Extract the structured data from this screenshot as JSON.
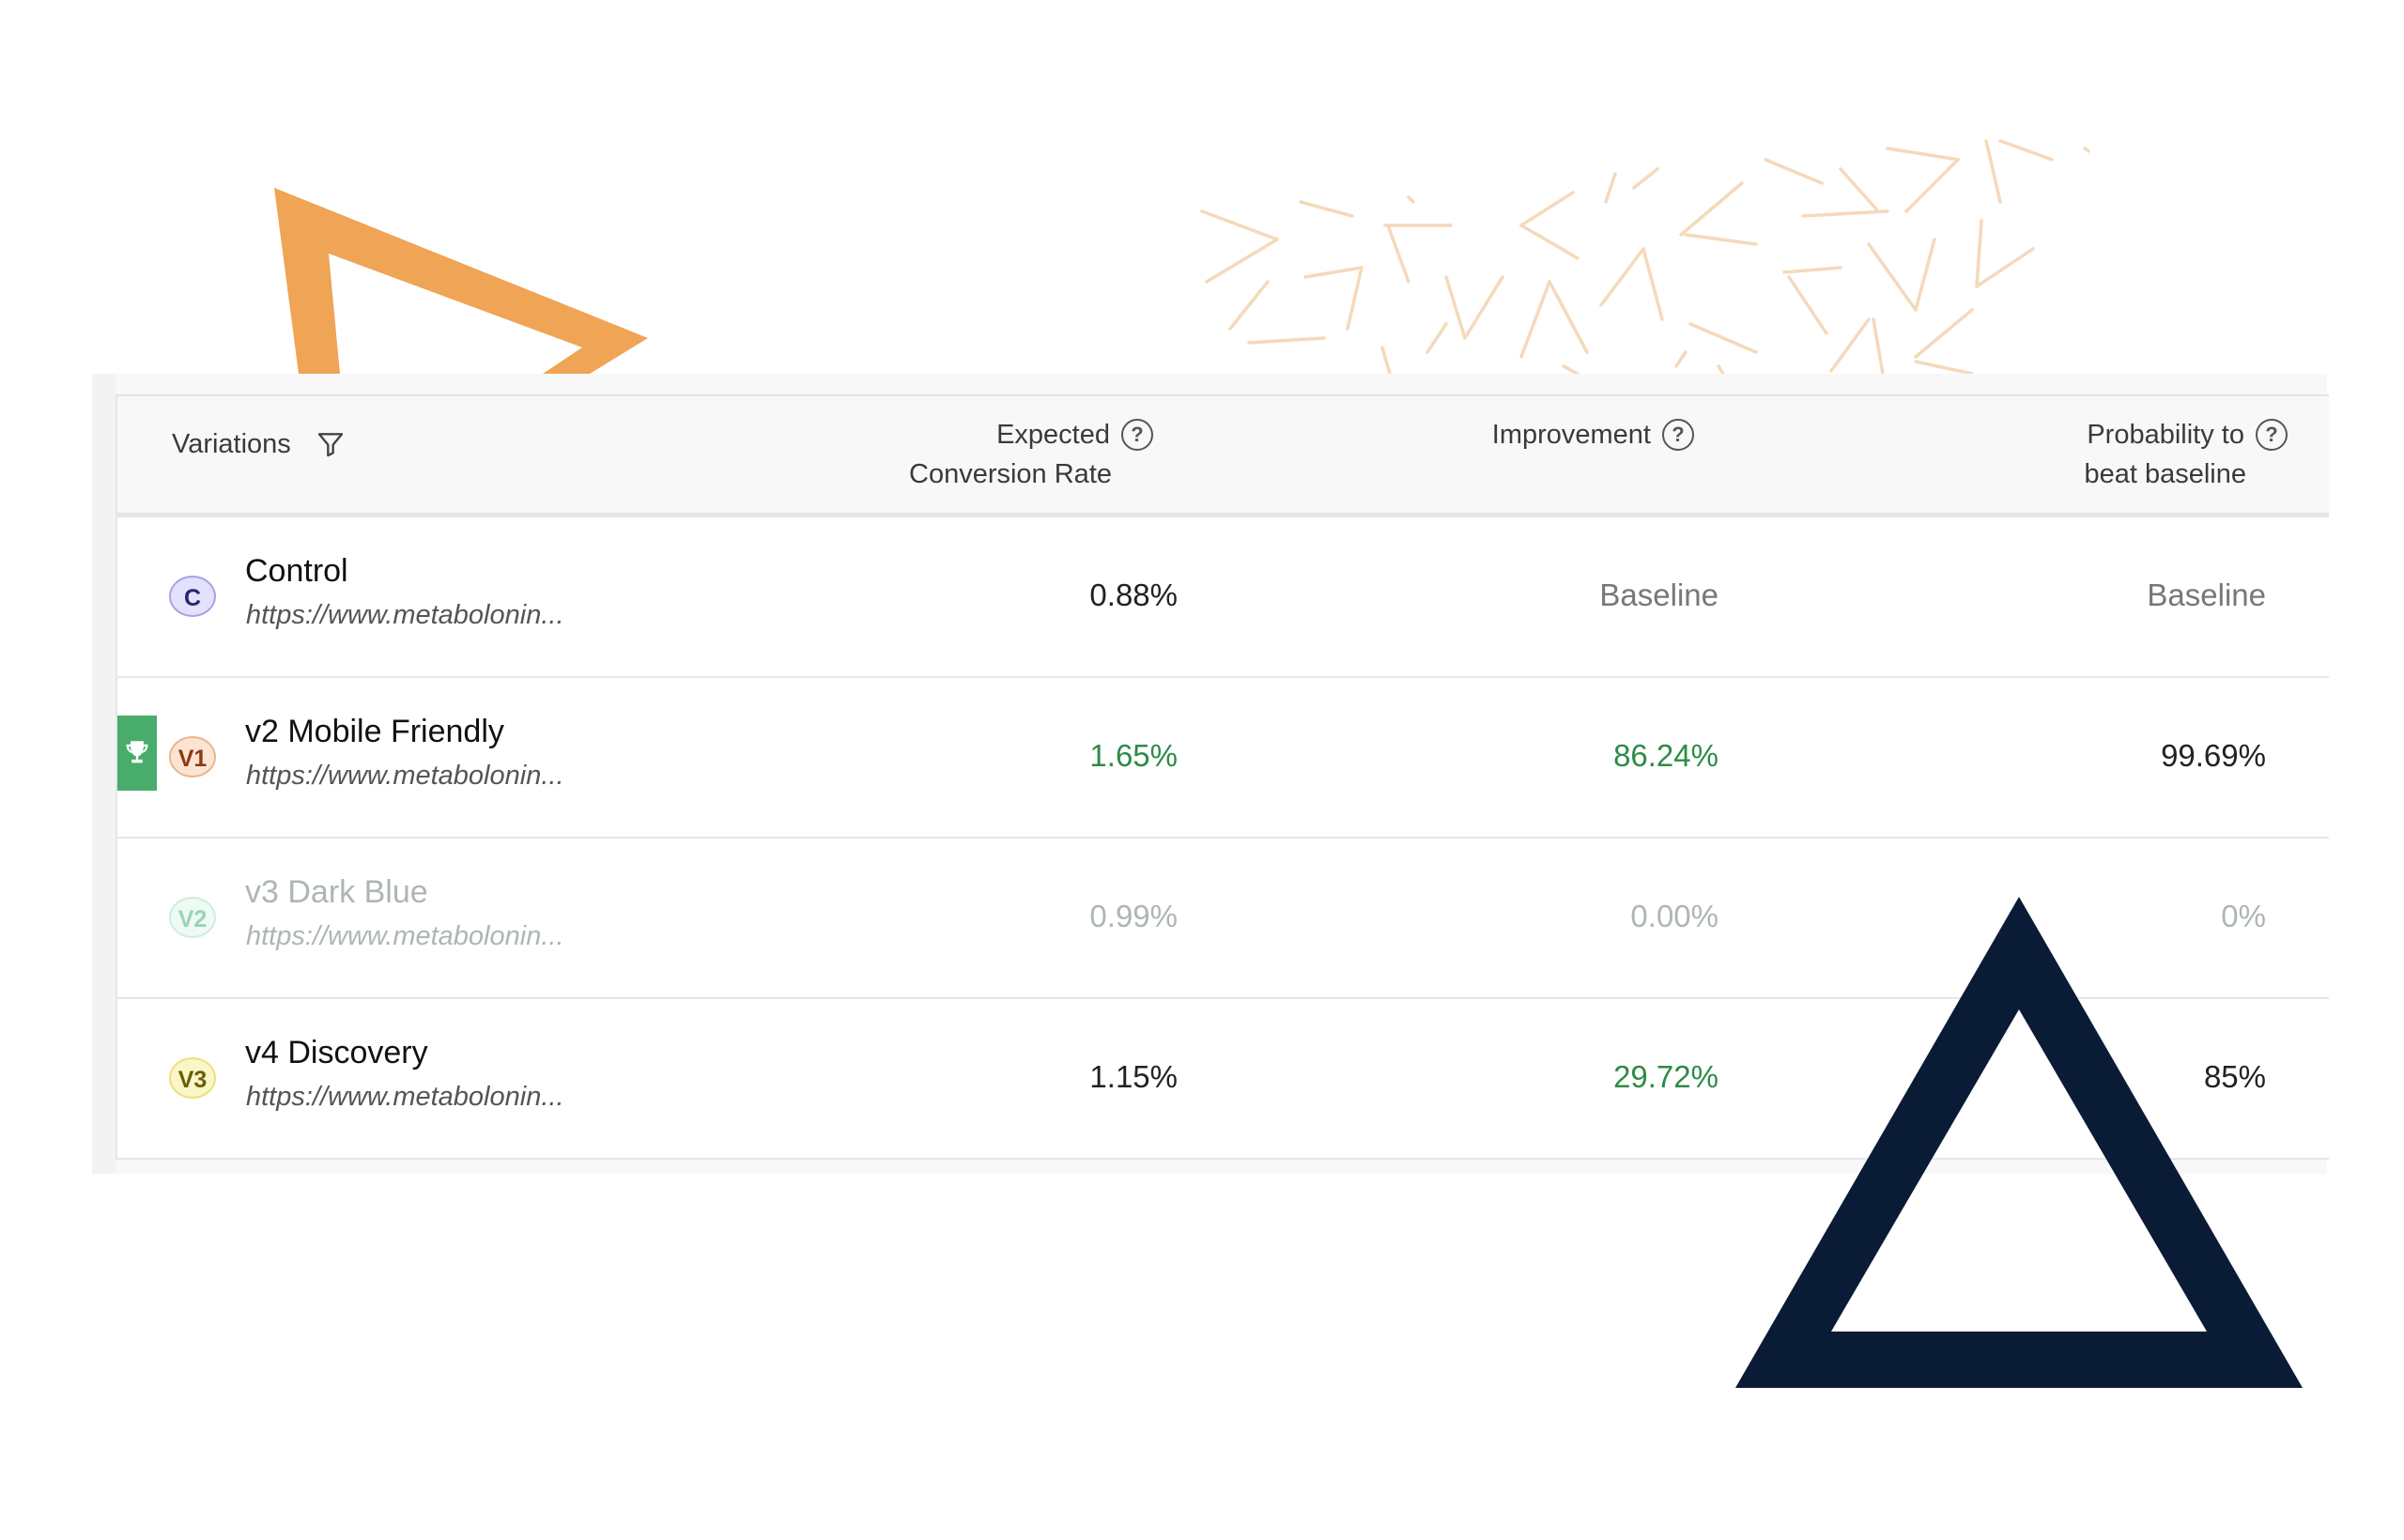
{
  "table": {
    "headers": {
      "variations": "Variations",
      "ecr_line1": "Expected",
      "ecr_line2": "Conversion Rate",
      "improvement": "Improvement",
      "prob_line1": "Probability to",
      "prob_line2": "beat baseline"
    },
    "help_glyph": "?",
    "rows": [
      {
        "badge": "C",
        "name": "Control",
        "url": "https://www.metabolonin...",
        "ecr": "0.88%",
        "improvement": "Baseline",
        "probability": "Baseline",
        "badge_bg": "#e3e1fb",
        "badge_border": "#a9a2e6",
        "badge_color": "#2a2470"
      },
      {
        "badge": "V1",
        "name": "v2 Mobile Friendly",
        "url": "https://www.metabolonin...",
        "ecr": "1.65%",
        "improvement": "86.24%",
        "probability": "99.69%",
        "winner": true,
        "badge_bg": "#fbe4d2",
        "badge_border": "#eab58a",
        "badge_color": "#8c3a12"
      },
      {
        "badge": "V2",
        "name": "v3 Dark Blue",
        "url": "https://www.metabolonin...",
        "ecr": "0.99%",
        "improvement": "0.00%",
        "probability": "0%",
        "faded": true,
        "badge_bg": "#eefaf4",
        "badge_border": "#cdeedd",
        "badge_color": "#9ad4b7"
      },
      {
        "badge": "V3",
        "name": "v4 Discovery",
        "url": "https://www.metabolonin...",
        "ecr": "1.15%",
        "improvement": "29.72%",
        "probability": "85%",
        "badge_bg": "#fbf6c8",
        "badge_border": "#ece07a",
        "badge_color": "#6b5e00"
      }
    ]
  },
  "colors": {
    "accent_orange": "#f0a455",
    "triangle_navy": "#0a1b36",
    "winner_green": "#48ad6a",
    "positive_green": "#2e8b47",
    "dash_color": "#f5d9bb"
  },
  "icons": [
    "filter-icon",
    "help-circle-icon",
    "trophy-icon"
  ]
}
